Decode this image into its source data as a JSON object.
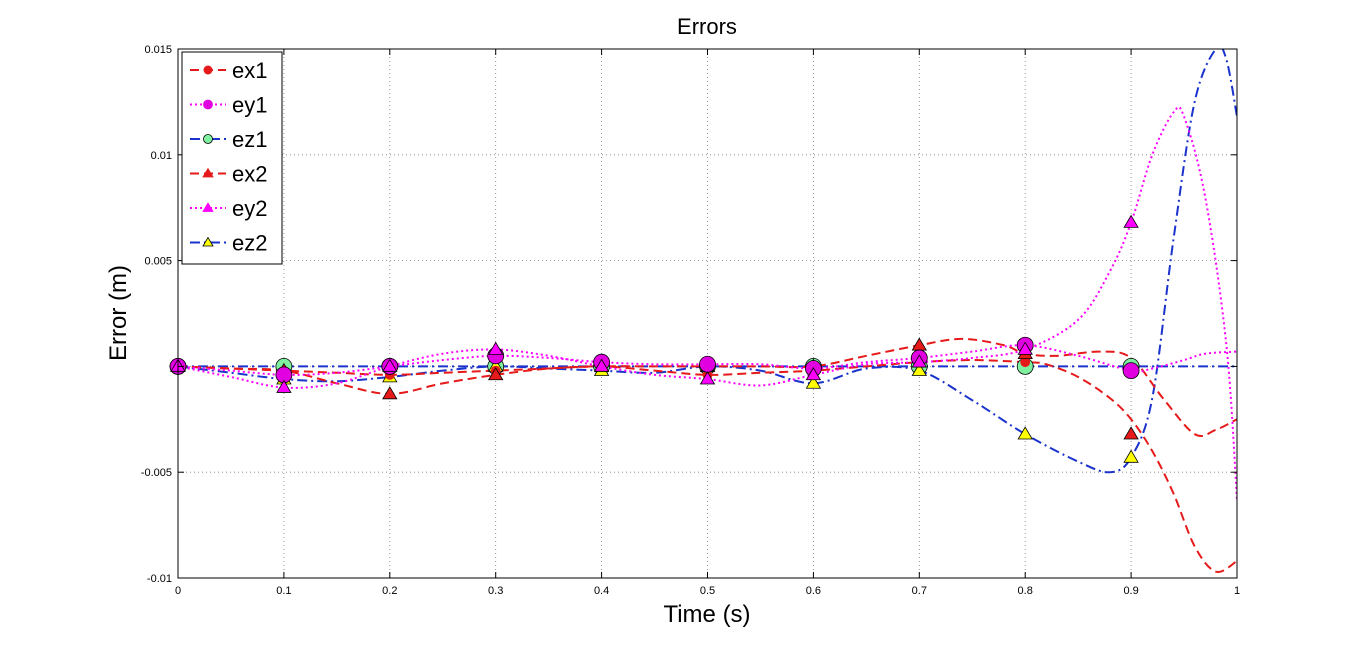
{
  "chart_data": {
    "type": "line",
    "title": "Errors",
    "xlabel": "Time (s)",
    "ylabel": "Error (m)",
    "xlim": [
      0,
      1
    ],
    "ylim": [
      -0.01,
      0.015
    ],
    "xticks": [
      0,
      0.1,
      0.2,
      0.3,
      0.4,
      0.5,
      0.6,
      0.7,
      0.8,
      0.9,
      1
    ],
    "xtick_labels": [
      "0",
      "0.1",
      "0.2",
      "0.3",
      "0.4",
      "0.5",
      "0.6",
      "0.7",
      "0.8",
      "0.9",
      "1"
    ],
    "yticks": [
      -0.01,
      -0.005,
      0.005,
      0.01,
      0.015
    ],
    "ytick_labels": [
      "-0.01",
      "-0.005",
      "0.005",
      "0.01",
      "0.015"
    ],
    "grid": true,
    "legend_position": "top-left",
    "series": [
      {
        "name": "ex1",
        "color": "#e61a1a",
        "dash": "dashed",
        "marker": "circle-small",
        "marker_fill": "#e61a1a",
        "x": [
          0,
          0.05,
          0.1,
          0.15,
          0.2,
          0.25,
          0.3,
          0.35,
          0.4,
          0.45,
          0.5,
          0.55,
          0.6,
          0.65,
          0.7,
          0.75,
          0.8,
          0.82,
          0.85,
          0.88,
          0.9,
          0.92,
          0.94,
          0.96,
          0.98,
          1
        ],
        "y": [
          0,
          -0.0001,
          -0.0002,
          -0.0003,
          -0.0004,
          -0.0003,
          -0.0002,
          -0.0001,
          0,
          -0.0002,
          -0.0004,
          -0.0003,
          -0.0002,
          0,
          0.0002,
          0.0003,
          0.0002,
          0.0001,
          -0.0005,
          -0.0015,
          -0.0025,
          -0.004,
          -0.006,
          -0.0085,
          -0.0097,
          -0.0092
        ],
        "markers_x": [
          0,
          0.1,
          0.2,
          0.3,
          0.4,
          0.5,
          0.6,
          0.7,
          0.8,
          0.9
        ],
        "markers_y": [
          0,
          -0.0002,
          -0.0004,
          -0.0002,
          0,
          -0.0004,
          -0.0002,
          0.0002,
          0.0002,
          -0.0002
        ]
      },
      {
        "name": "ey1",
        "color": "#ff00ff",
        "dash": "dotted",
        "marker": "circle",
        "marker_fill": "#e000e0",
        "x": [
          0,
          0.05,
          0.1,
          0.15,
          0.2,
          0.25,
          0.3,
          0.35,
          0.4,
          0.45,
          0.5,
          0.55,
          0.6,
          0.65,
          0.7,
          0.75,
          0.8,
          0.85,
          0.9,
          0.92,
          0.95,
          0.97,
          1
        ],
        "y": [
          0,
          -0.0002,
          -0.0004,
          -0.0003,
          0,
          0.0003,
          0.0005,
          0.0004,
          0.0002,
          0.0001,
          0.0001,
          0.0001,
          -0.0001,
          0.0002,
          0.0004,
          0.0007,
          0.001,
          0.0005,
          -0.0002,
          -0.0001,
          0.0003,
          0.0006,
          0.0007
        ],
        "markers_x": [
          0,
          0.1,
          0.2,
          0.3,
          0.4,
          0.5,
          0.6,
          0.7,
          0.8,
          0.9
        ],
        "markers_y": [
          0,
          -0.0004,
          0,
          0.0005,
          0.0002,
          0.0001,
          -0.0001,
          0.0004,
          0.001,
          -0.0002
        ]
      },
      {
        "name": "ez1",
        "color": "#1a33cc",
        "dash": "dashdot",
        "marker": "circle",
        "marker_fill": "#7ff0a0",
        "x": [
          0,
          0.1,
          0.2,
          0.3,
          0.4,
          0.5,
          0.6,
          0.7,
          0.8,
          0.9,
          1
        ],
        "y": [
          0,
          0,
          0,
          0,
          0,
          0,
          0,
          0,
          0,
          0,
          0
        ],
        "markers_x": [
          0,
          0.1,
          0.2,
          0.3,
          0.4,
          0.5,
          0.6,
          0.7,
          0.8,
          0.9
        ],
        "markers_y": [
          0,
          0,
          0,
          0,
          0,
          0,
          0,
          0,
          0,
          0
        ]
      },
      {
        "name": "ex2",
        "color": "#e61a1a",
        "dash": "dashed",
        "marker": "triangle",
        "marker_fill": "#e61a1a",
        "x": [
          0,
          0.05,
          0.1,
          0.15,
          0.2,
          0.25,
          0.3,
          0.35,
          0.4,
          0.45,
          0.5,
          0.55,
          0.6,
          0.65,
          0.7,
          0.74,
          0.78,
          0.8,
          0.83,
          0.87,
          0.9,
          0.93,
          0.96,
          0.98,
          1
        ],
        "y": [
          0,
          -0.0001,
          -0.0002,
          -0.0008,
          -0.0013,
          -0.0008,
          -0.0004,
          -0.0001,
          0,
          0,
          0,
          0,
          0,
          0.0005,
          0.001,
          0.0013,
          0.001,
          0.0006,
          0.0005,
          0.0007,
          0.0004,
          -0.0015,
          -0.0032,
          -0.003,
          -0.0025
        ],
        "markers_x": [
          0,
          0.1,
          0.2,
          0.3,
          0.4,
          0.5,
          0.6,
          0.7,
          0.8,
          0.9
        ],
        "markers_y": [
          0,
          -0.0002,
          -0.0013,
          -0.0004,
          0,
          0,
          0,
          0.001,
          0.0006,
          -0.0032
        ]
      },
      {
        "name": "ey2",
        "color": "#ff00ff",
        "dash": "dotted",
        "marker": "triangle",
        "marker_fill": "#ff00ff",
        "x": [
          0,
          0.05,
          0.1,
          0.15,
          0.2,
          0.25,
          0.3,
          0.35,
          0.4,
          0.45,
          0.5,
          0.55,
          0.6,
          0.65,
          0.7,
          0.75,
          0.8,
          0.85,
          0.88,
          0.9,
          0.92,
          0.94,
          0.95,
          0.97,
          0.99,
          1
        ],
        "y": [
          0,
          -0.0005,
          -0.001,
          -0.0008,
          0,
          0.0006,
          0.0008,
          0.0005,
          0,
          -0.0004,
          -0.0006,
          -0.0009,
          -0.0004,
          0.0001,
          0.0002,
          0.0004,
          0.0008,
          0.0022,
          0.0045,
          0.0068,
          0.01,
          0.012,
          0.0118,
          0.008,
          0.001,
          -0.0063
        ],
        "markers_x": [
          0,
          0.1,
          0.2,
          0.3,
          0.4,
          0.5,
          0.6,
          0.7,
          0.8,
          0.9
        ],
        "markers_y": [
          0,
          -0.001,
          0,
          0.0008,
          0,
          -0.0006,
          -0.0004,
          0.0002,
          0.0008,
          0.0068
        ]
      },
      {
        "name": "ez2",
        "color": "#1a33cc",
        "dash": "dashdot",
        "marker": "triangle",
        "marker_fill": "#ffff00",
        "x": [
          0,
          0.05,
          0.1,
          0.15,
          0.2,
          0.25,
          0.3,
          0.35,
          0.4,
          0.45,
          0.5,
          0.55,
          0.6,
          0.65,
          0.7,
          0.75,
          0.8,
          0.85,
          0.88,
          0.9,
          0.92,
          0.94,
          0.96,
          0.98,
          0.99,
          1
        ],
        "y": [
          0,
          -0.0003,
          -0.0006,
          -0.0007,
          -0.0005,
          -0.0002,
          0,
          -0.0001,
          -0.0002,
          -0.0003,
          0,
          -0.0002,
          -0.0008,
          -0.0001,
          -0.0002,
          -0.0016,
          -0.0032,
          -0.0045,
          -0.005,
          -0.0043,
          -0.0015,
          0.006,
          0.0125,
          0.015,
          0.0145,
          0.0118
        ],
        "markers_x": [
          0,
          0.1,
          0.2,
          0.3,
          0.4,
          0.5,
          0.6,
          0.7,
          0.8,
          0.9
        ],
        "markers_y": [
          0,
          -0.0006,
          -0.0005,
          0,
          -0.0002,
          0,
          -0.0008,
          -0.0002,
          -0.0032,
          -0.0043
        ]
      }
    ]
  }
}
